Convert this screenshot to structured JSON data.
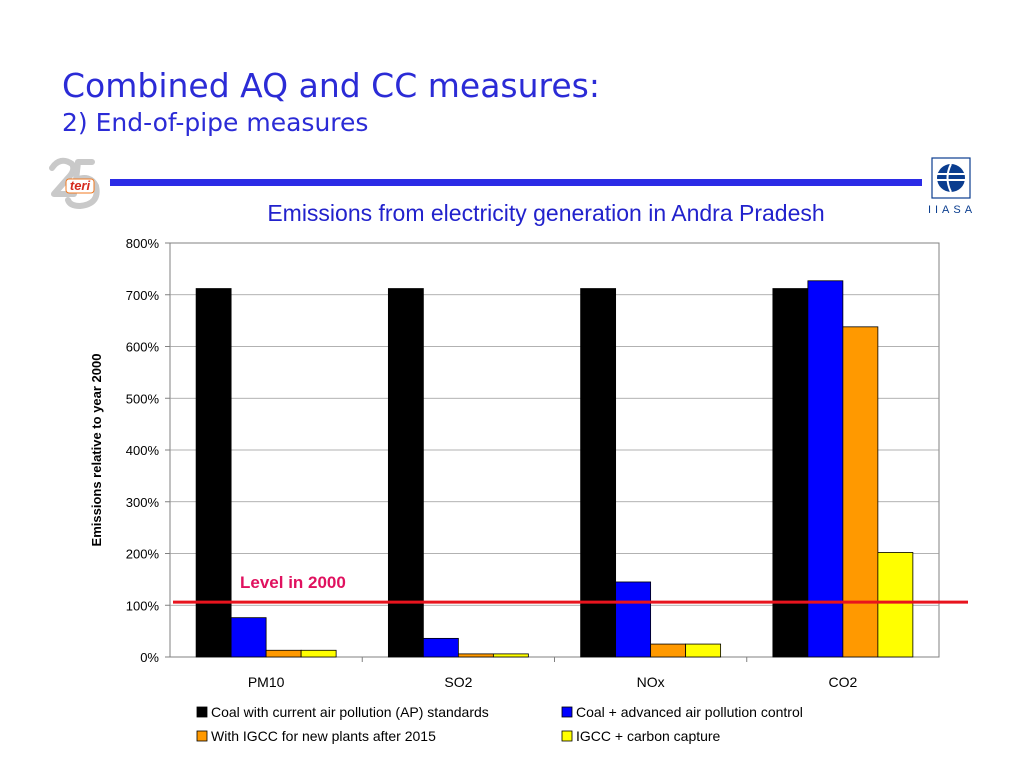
{
  "slide": {
    "title": "Combined AQ and CC measures:",
    "subtitle": "2) End-of-pipe measures",
    "logo_left_text": "teri",
    "logo_right_text": "IIASA"
  },
  "colors": {
    "title": "#2b2bd6",
    "rule": "#2b2be6",
    "chart_title": "#2222cc",
    "level_line": "#e8141e",
    "level_label": "#e0115f"
  },
  "chart_data": {
    "type": "bar",
    "title": "Emissions from electricity generation in Andra Pradesh",
    "xlabel": "",
    "ylabel": "Emissions relative to year 2000",
    "ylim": [
      0,
      800
    ],
    "yticks": [
      0,
      100,
      200,
      300,
      400,
      500,
      600,
      700,
      800
    ],
    "ytick_labels": [
      "0%",
      "100%",
      "200%",
      "300%",
      "400%",
      "500%",
      "600%",
      "700%",
      "800%"
    ],
    "grid": true,
    "categories": [
      "PM10",
      "SO2",
      "NOx",
      "CO2"
    ],
    "series": [
      {
        "name": "Coal with current air pollution (AP) standards",
        "color": "#000000",
        "values": [
          712,
          712,
          712,
          712
        ]
      },
      {
        "name": "Coal + advanced air pollution control",
        "color": "#0000ff",
        "values": [
          76,
          36,
          145,
          727
        ]
      },
      {
        "name": "With IGCC for new plants after 2015",
        "color": "#ff9900",
        "values": [
          13,
          6,
          25,
          638
        ]
      },
      {
        "name": "IGCC + carbon capture",
        "color": "#ffff00",
        "values": [
          13,
          6,
          25,
          202
        ]
      }
    ],
    "reference_line": {
      "label": "Level in 2000",
      "value": 106
    },
    "legend_position": "bottom"
  }
}
